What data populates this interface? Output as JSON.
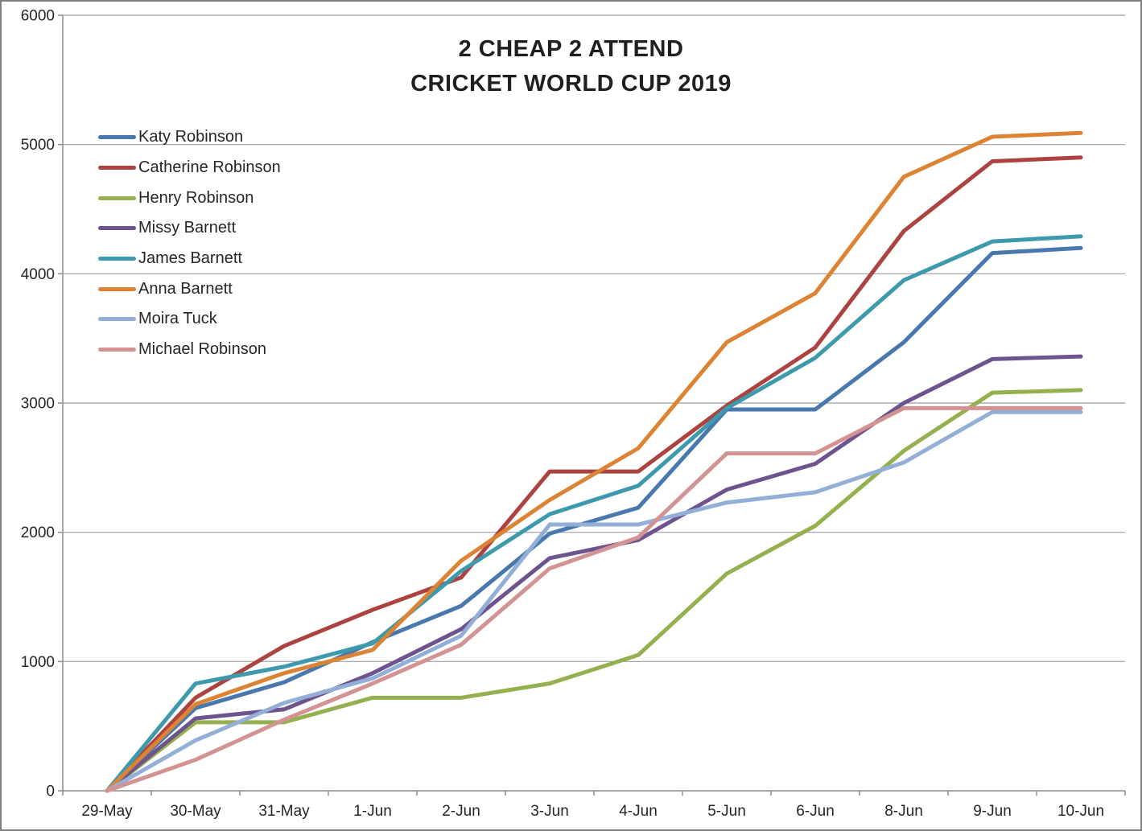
{
  "window": {
    "background": "#FFFFFF",
    "border_color": "#808080"
  },
  "chart_data": {
    "type": "line",
    "title_lines": [
      "2 CHEAP 2 ATTEND",
      "CRICKET WORLD CUP 2019"
    ],
    "categories": [
      "29-May",
      "30-May",
      "31-May",
      "1-Jun",
      "2-Jun",
      "3-Jun",
      "4-Jun",
      "5-Jun",
      "6-Jun",
      "8-Jun",
      "9-Jun",
      "10-Jun"
    ],
    "ylim": [
      0,
      6000
    ],
    "ytick_interval": 1000,
    "ytick_labels": [
      "0",
      "1000",
      "2000",
      "3000",
      "4000",
      "5000",
      "6000"
    ],
    "grid": true,
    "legend_position": "overlay-upper-left",
    "grid_color": "#9E9E9E",
    "axis_color": "#8C8C8C",
    "text_color": "#262626",
    "line_width": 5,
    "series": [
      {
        "name": "Katy Robinson",
        "color": "#4878AD",
        "values": [
          0,
          640,
          840,
          1150,
          1430,
          1990,
          2190,
          2950,
          2950,
          3470,
          4160,
          4200
        ]
      },
      {
        "name": "Catherine Robinson",
        "color": "#AC4340",
        "values": [
          0,
          720,
          1120,
          1400,
          1650,
          2470,
          2470,
          2980,
          3430,
          4330,
          4870,
          4900
        ]
      },
      {
        "name": "Henry Robinson",
        "color": "#95B04E",
        "values": [
          0,
          530,
          530,
          720,
          720,
          830,
          1050,
          1680,
          2050,
          2630,
          3080,
          3100
        ]
      },
      {
        "name": "Missy Barnett",
        "color": "#6D548E",
        "values": [
          0,
          560,
          630,
          910,
          1250,
          1800,
          1940,
          2330,
          2530,
          3000,
          3340,
          3360
        ]
      },
      {
        "name": "James Barnett",
        "color": "#3D9AAD",
        "values": [
          0,
          830,
          960,
          1140,
          1700,
          2140,
          2360,
          2960,
          3350,
          3950,
          4250,
          4290
        ]
      },
      {
        "name": "Anna Barnett",
        "color": "#DC8433",
        "values": [
          0,
          670,
          910,
          1090,
          1780,
          2250,
          2650,
          3470,
          3850,
          4750,
          5060,
          5090
        ]
      },
      {
        "name": "Moira Tuck",
        "color": "#93AFD7",
        "values": [
          0,
          390,
          680,
          870,
          1200,
          2060,
          2060,
          2230,
          2310,
          2540,
          2930,
          2930
        ]
      },
      {
        "name": "Michael Robinson",
        "color": "#D29392",
        "values": [
          0,
          240,
          550,
          830,
          1130,
          1720,
          1960,
          2610,
          2610,
          2960,
          2960,
          2960
        ]
      }
    ]
  }
}
